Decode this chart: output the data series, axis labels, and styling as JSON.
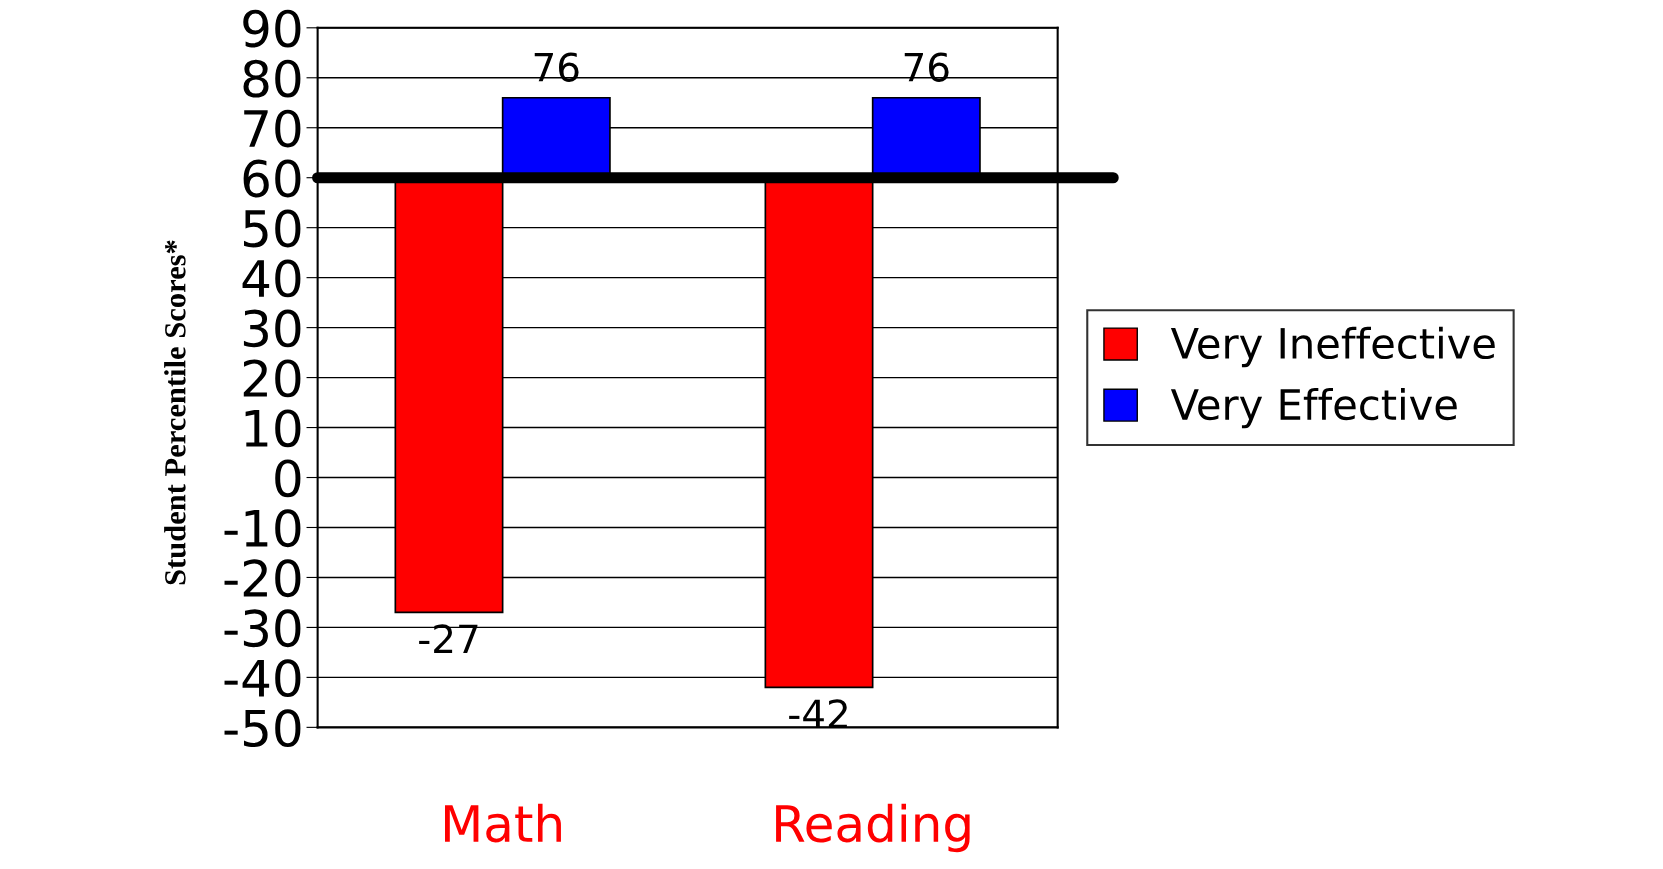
{
  "chart_data": {
    "type": "bar",
    "ylabel": "Student Percentile Scores*",
    "categories": [
      "Math",
      "Reading"
    ],
    "series": [
      {
        "name": "Very Ineffective",
        "color": "#ff0000",
        "base": [
          60,
          60
        ],
        "values": [
          -87,
          -102
        ],
        "value_labels": [
          "-27",
          "-42"
        ]
      },
      {
        "name": "Very Effective",
        "color": "#0000ff",
        "base": [
          60,
          60
        ],
        "values": [
          16,
          16
        ],
        "value_labels": [
          "76",
          "76"
        ]
      }
    ],
    "ylim": [
      -50,
      90
    ],
    "yticks": [
      -50,
      -40,
      -30,
      -20,
      -10,
      0,
      10,
      20,
      30,
      40,
      50,
      60,
      70,
      80,
      90
    ],
    "ref_lines": [
      {
        "axis": "y",
        "value": 60,
        "color": "#000000"
      }
    ],
    "grid": "y",
    "legend": "right"
  }
}
